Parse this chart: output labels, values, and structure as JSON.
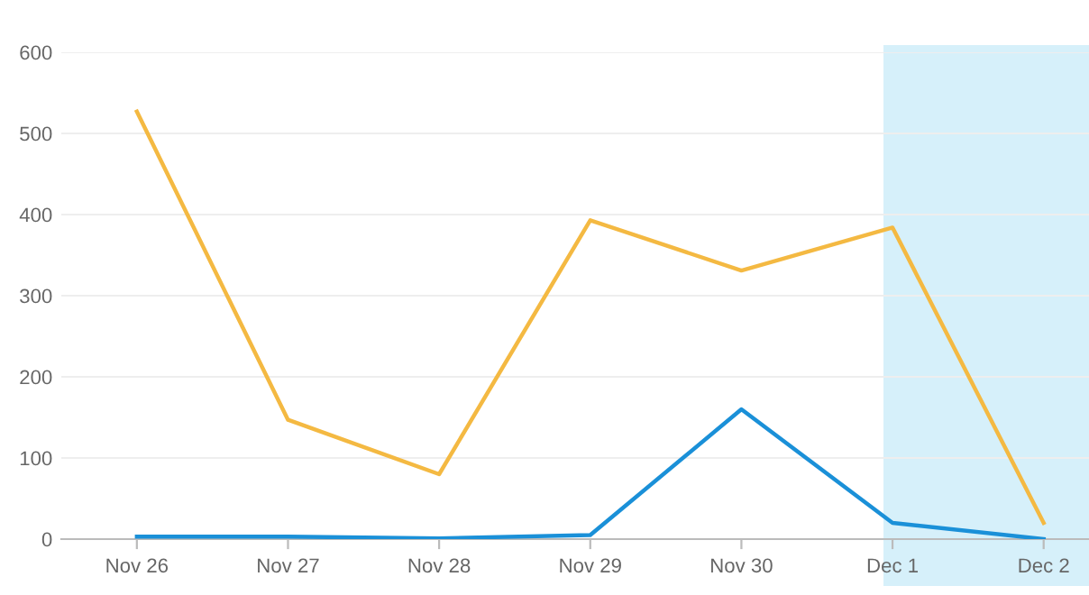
{
  "chart_data": {
    "type": "line",
    "categories": [
      "Nov 26",
      "Nov 27",
      "Nov 28",
      "Nov 29",
      "Nov 30",
      "Dec 1",
      "Dec 2"
    ],
    "series": [
      {
        "color": "#f4b942",
        "values": [
          527,
          147,
          80,
          393,
          331,
          384,
          20
        ]
      },
      {
        "color": "#1a90d8",
        "values": [
          3,
          3,
          1,
          5,
          160,
          20,
          0
        ]
      }
    ],
    "ylim": [
      0,
      600
    ],
    "yticks": [
      0,
      100,
      200,
      300,
      400,
      500,
      600
    ],
    "grid": "y",
    "legend": false,
    "marker": "none",
    "line_style": "solid"
  }
}
